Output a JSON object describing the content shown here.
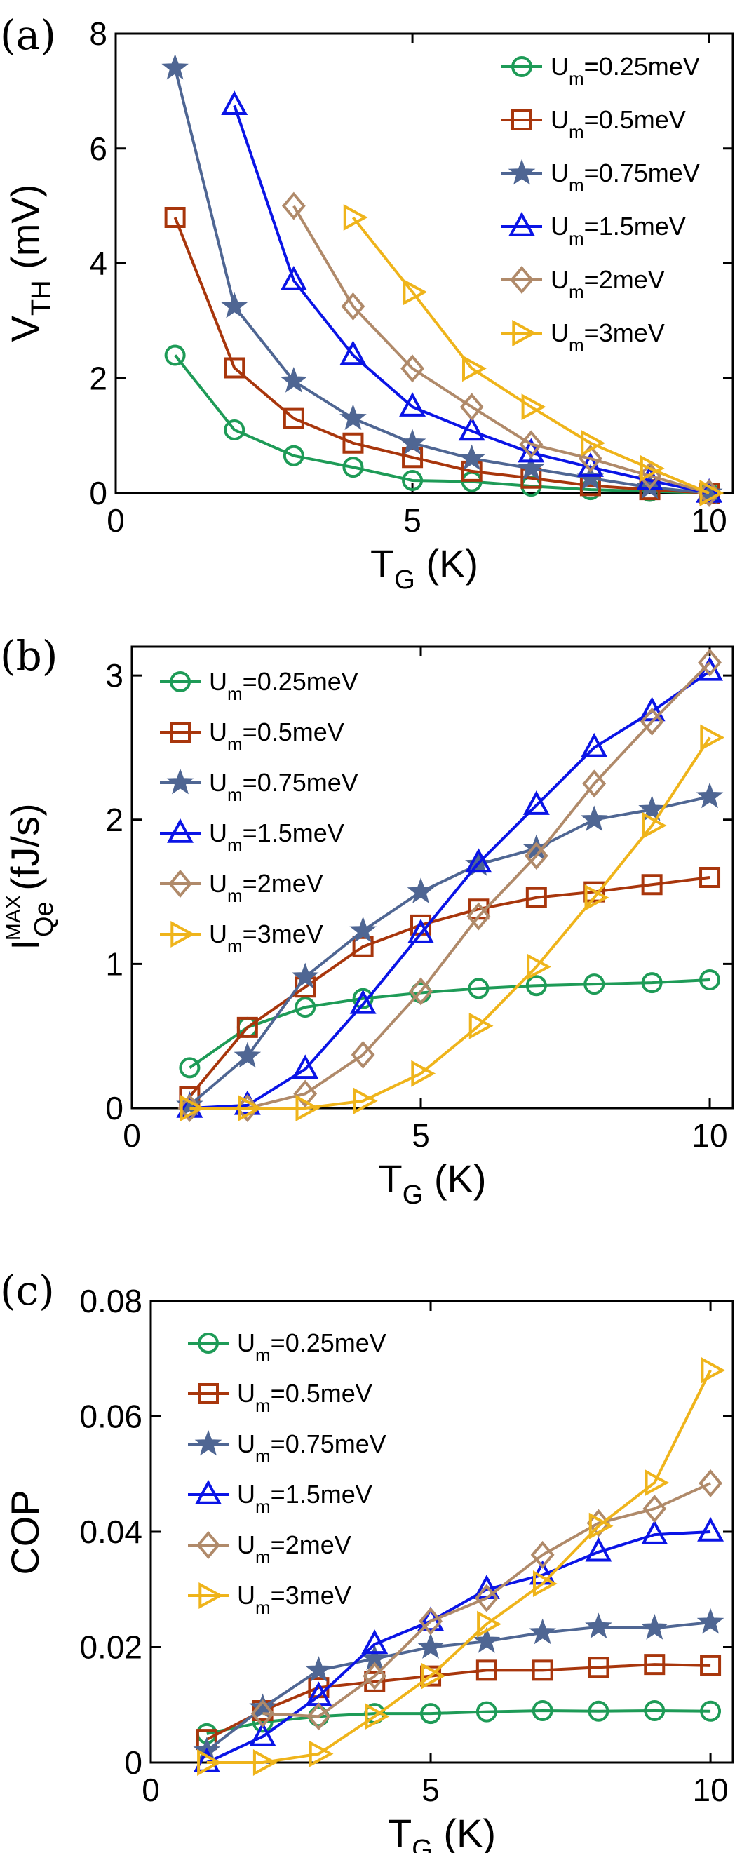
{
  "figure": {
    "series_style": [
      {
        "color": "#1e9b57",
        "marker": "circle"
      },
      {
        "color": "#a8360c",
        "marker": "square"
      },
      {
        "color": "#4f6693",
        "marker": "star"
      },
      {
        "color": "#0a14e6",
        "marker": "triangle-up"
      },
      {
        "color": "#b08a6a",
        "marker": "diamond"
      },
      {
        "color": "#efb41b",
        "marker": "triangle-right"
      }
    ],
    "legend_prefix": "U",
    "legend_sub": "m"
  },
  "chart_data": [
    {
      "panel_label": "(a)",
      "type": "line",
      "xlabel": {
        "main": "T",
        "sub": "G",
        "unit": " (K)"
      },
      "ylabel": {
        "main": "V",
        "sub": "TH",
        "sup": "",
        "unit": " (mV)"
      },
      "xlim": [
        0,
        10.4
      ],
      "ylim": [
        0,
        8
      ],
      "xticks": [
        0,
        5,
        10
      ],
      "yticks": [
        0,
        2,
        4,
        6,
        8
      ],
      "xtick_labels": [
        "0",
        "5",
        "10"
      ],
      "ytick_labels": [
        "0",
        "2",
        "4",
        "6",
        "8"
      ],
      "legend_loc": "top-right",
      "series": [
        {
          "name": "=0.25meV",
          "x": [
            1,
            2,
            3,
            4,
            5,
            6,
            7,
            8,
            9,
            10
          ],
          "values": [
            2.4,
            1.1,
            0.65,
            0.45,
            0.22,
            0.2,
            0.12,
            0.06,
            0.03,
            0.0
          ]
        },
        {
          "name": "=0.5meV",
          "x": [
            1,
            2,
            3,
            4,
            5,
            6,
            7,
            8,
            9,
            10
          ],
          "values": [
            4.8,
            2.18,
            1.3,
            0.87,
            0.62,
            0.38,
            0.26,
            0.13,
            0.06,
            0.0
          ]
        },
        {
          "name": "=0.75meV",
          "x": [
            1,
            2,
            3,
            4,
            5,
            6,
            7,
            8,
            9,
            10
          ],
          "values": [
            7.4,
            3.25,
            1.95,
            1.3,
            0.87,
            0.6,
            0.43,
            0.26,
            0.1,
            0.0
          ]
        },
        {
          "name": "=1.5meV",
          "x": [
            2,
            3,
            4,
            5,
            6,
            7,
            8,
            9,
            10
          ],
          "values": [
            6.75,
            3.7,
            2.4,
            1.5,
            1.08,
            0.7,
            0.45,
            0.22,
            0.0
          ]
        },
        {
          "name": "=2meV",
          "x": [
            3,
            4,
            5,
            6,
            7,
            8,
            9,
            10
          ],
          "values": [
            5.0,
            3.25,
            2.17,
            1.5,
            0.85,
            0.6,
            0.3,
            0.0
          ]
        },
        {
          "name": "=3meV",
          "x": [
            4,
            5,
            6,
            7,
            8,
            9,
            10
          ],
          "values": [
            4.8,
            3.5,
            2.17,
            1.5,
            0.87,
            0.43,
            0.0
          ]
        }
      ]
    },
    {
      "panel_label": "(b)",
      "type": "line",
      "xlabel": {
        "main": "T",
        "sub": "G",
        "unit": " (K)"
      },
      "ylabel": {
        "main": "I",
        "sub": "Qe",
        "sup": "MAX",
        "unit": " (fJ/s)"
      },
      "xlim": [
        0,
        10.4
      ],
      "ylim": [
        0,
        3.2
      ],
      "xticks": [
        0,
        5,
        10
      ],
      "yticks": [
        0,
        1,
        2,
        3
      ],
      "xtick_labels": [
        "0",
        "5",
        "10"
      ],
      "ytick_labels": [
        "0",
        "1",
        "2",
        "3"
      ],
      "legend_loc": "top-left",
      "series": [
        {
          "name": "=0.25meV",
          "x": [
            1,
            2,
            3,
            4,
            5,
            6,
            7,
            8,
            9,
            10
          ],
          "values": [
            0.28,
            0.56,
            0.7,
            0.76,
            0.8,
            0.83,
            0.85,
            0.86,
            0.87,
            0.89
          ]
        },
        {
          "name": "=0.5meV",
          "x": [
            1,
            2,
            3,
            4,
            5,
            6,
            7,
            8,
            9,
            10
          ],
          "values": [
            0.08,
            0.56,
            0.84,
            1.12,
            1.27,
            1.38,
            1.46,
            1.5,
            1.55,
            1.6
          ]
        },
        {
          "name": "=0.75meV",
          "x": [
            1,
            2,
            3,
            4,
            5,
            6,
            7,
            8,
            9,
            10
          ],
          "values": [
            0.02,
            0.36,
            0.91,
            1.23,
            1.5,
            1.69,
            1.8,
            2.0,
            2.07,
            2.16
          ]
        },
        {
          "name": "=1.5meV",
          "x": [
            1,
            2,
            3,
            4,
            5,
            6,
            7,
            8,
            9,
            10
          ],
          "values": [
            0.0,
            0.02,
            0.27,
            0.72,
            1.21,
            1.7,
            2.1,
            2.5,
            2.75,
            3.03
          ]
        },
        {
          "name": "=2meV",
          "x": [
            1,
            2,
            3,
            4,
            5,
            6,
            7,
            8,
            9,
            10
          ],
          "values": [
            0.0,
            0.0,
            0.1,
            0.37,
            0.81,
            1.33,
            1.75,
            2.25,
            2.68,
            3.09
          ]
        },
        {
          "name": "=3meV",
          "x": [
            1,
            2,
            3,
            4,
            5,
            6,
            7,
            8,
            9,
            10
          ],
          "values": [
            0.0,
            0.0,
            0.0,
            0.05,
            0.24,
            0.57,
            0.98,
            1.46,
            1.96,
            2.57
          ]
        }
      ]
    },
    {
      "panel_label": "(c)",
      "type": "line",
      "xlabel": {
        "main": "T",
        "sub": "G",
        "unit": " (K)"
      },
      "ylabel": {
        "main": "COP",
        "sub": "",
        "sup": "",
        "unit": ""
      },
      "xlim": [
        0,
        10.4
      ],
      "ylim": [
        0,
        0.08
      ],
      "xticks": [
        0,
        5,
        10
      ],
      "yticks": [
        0,
        0.02,
        0.04,
        0.06,
        0.08
      ],
      "xtick_labels": [
        "0",
        "5",
        "10"
      ],
      "ytick_labels": [
        "0",
        "0.02",
        "0.04",
        "0.06",
        "0.08"
      ],
      "legend_loc": "top-left",
      "series": [
        {
          "name": "=0.25meV",
          "x": [
            1,
            2,
            3,
            4,
            5,
            6,
            7,
            8,
            9,
            10
          ],
          "values": [
            0.005,
            0.007,
            0.008,
            0.0085,
            0.0085,
            0.0088,
            0.009,
            0.0089,
            0.009,
            0.0089
          ]
        },
        {
          "name": "=0.5meV",
          "x": [
            1,
            2,
            3,
            4,
            5,
            6,
            7,
            8,
            9,
            10
          ],
          "values": [
            0.004,
            0.009,
            0.013,
            0.014,
            0.015,
            0.016,
            0.016,
            0.0165,
            0.017,
            0.0168
          ]
        },
        {
          "name": "=0.75meV",
          "x": [
            1,
            2,
            3,
            4,
            5,
            6,
            7,
            8,
            9,
            10
          ],
          "values": [
            0.002,
            0.0095,
            0.016,
            0.018,
            0.02,
            0.021,
            0.0225,
            0.0235,
            0.0233,
            0.0243
          ]
        },
        {
          "name": "=1.5meV",
          "x": [
            1,
            2,
            3,
            4,
            5,
            6,
            7,
            8,
            9,
            10
          ],
          "values": [
            0.0,
            0.0045,
            0.0115,
            0.0205,
            0.0245,
            0.03,
            0.0325,
            0.0365,
            0.0395,
            0.04
          ]
        },
        {
          "name": "=2meV",
          "x": [
            2,
            3,
            4,
            5,
            6,
            7,
            8,
            9,
            10
          ],
          "values": [
            0.0085,
            0.008,
            0.015,
            0.0245,
            0.0285,
            0.036,
            0.0415,
            0.044,
            0.0484
          ]
        },
        {
          "name": "=3meV",
          "x": [
            1,
            2,
            3,
            4,
            5,
            6,
            7,
            8,
            9,
            10
          ],
          "values": [
            0.0,
            0.0,
            0.0015,
            0.008,
            0.015,
            0.024,
            0.031,
            0.041,
            0.0485,
            0.068
          ]
        }
      ]
    }
  ]
}
